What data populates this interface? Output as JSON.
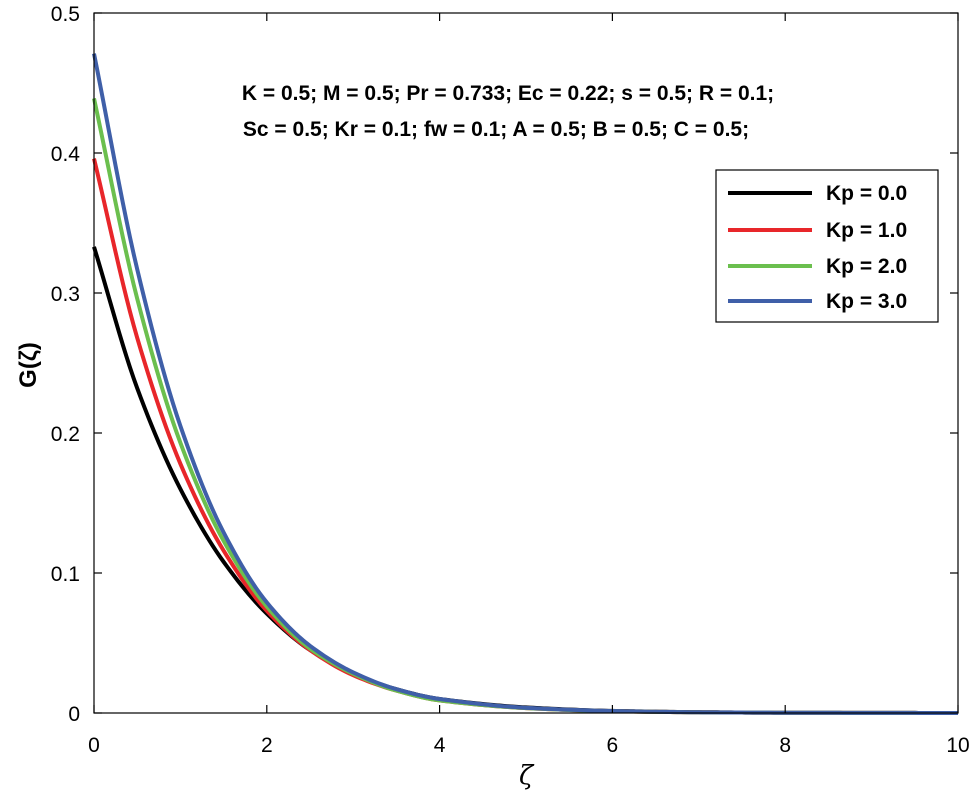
{
  "chart_data": {
    "type": "line",
    "xlabel": "ζ",
    "ylabel": "G(ζ)",
    "xlim": [
      0,
      10
    ],
    "ylim": [
      0,
      0.5
    ],
    "xticks": [
      0,
      2,
      4,
      6,
      8,
      10
    ],
    "yticks": [
      0,
      0.1,
      0.2,
      0.3,
      0.4,
      0.5
    ],
    "xtick_labels": [
      "0",
      "2",
      "4",
      "6",
      "8",
      "10"
    ],
    "ytick_labels": [
      "0",
      "0.1",
      "0.2",
      "0.3",
      "0.4",
      "0.5"
    ],
    "grid": false,
    "legend_position": "upper-right",
    "annotations": [
      "K = 0.5; M = 0.5; Pr = 0.733; Ec = 0.22; s = 0.5; R = 0.1;",
      "Sc = 0.5; Kr = 0.1; fw = 0.1; A = 0.5; B = 0.5; C = 0.5;"
    ],
    "x": [
      0,
      0.5,
      1,
      1.5,
      2,
      2.5,
      3,
      3.5,
      4,
      5,
      6,
      7,
      8,
      9,
      10
    ],
    "series": [
      {
        "name": "Kp = 0.0",
        "color": "#000000",
        "values": [
          0.333,
          0.232,
          0.16,
          0.108,
          0.071,
          0.045,
          0.028,
          0.017,
          0.01,
          0.004,
          0.0015,
          0.0006,
          0.0002,
          0.0001,
          0.0
        ]
      },
      {
        "name": "Kp = 1.0",
        "color": "#e8262a",
        "values": [
          0.396,
          0.268,
          0.178,
          0.116,
          0.073,
          0.045,
          0.027,
          0.016,
          0.009,
          0.0035,
          0.0013,
          0.0005,
          0.0002,
          0.0001,
          0.0
        ]
      },
      {
        "name": "Kp = 2.0",
        "color": "#6bbf4e",
        "values": [
          0.439,
          0.296,
          0.193,
          0.123,
          0.076,
          0.046,
          0.028,
          0.016,
          0.009,
          0.0035,
          0.0013,
          0.0005,
          0.0002,
          0.0001,
          0.0
        ]
      },
      {
        "name": "Kp = 3.0",
        "color": "#3f5fa8",
        "values": [
          0.471,
          0.317,
          0.205,
          0.129,
          0.079,
          0.048,
          0.029,
          0.017,
          0.01,
          0.0037,
          0.0014,
          0.0005,
          0.0002,
          0.0001,
          0.0
        ]
      }
    ]
  }
}
